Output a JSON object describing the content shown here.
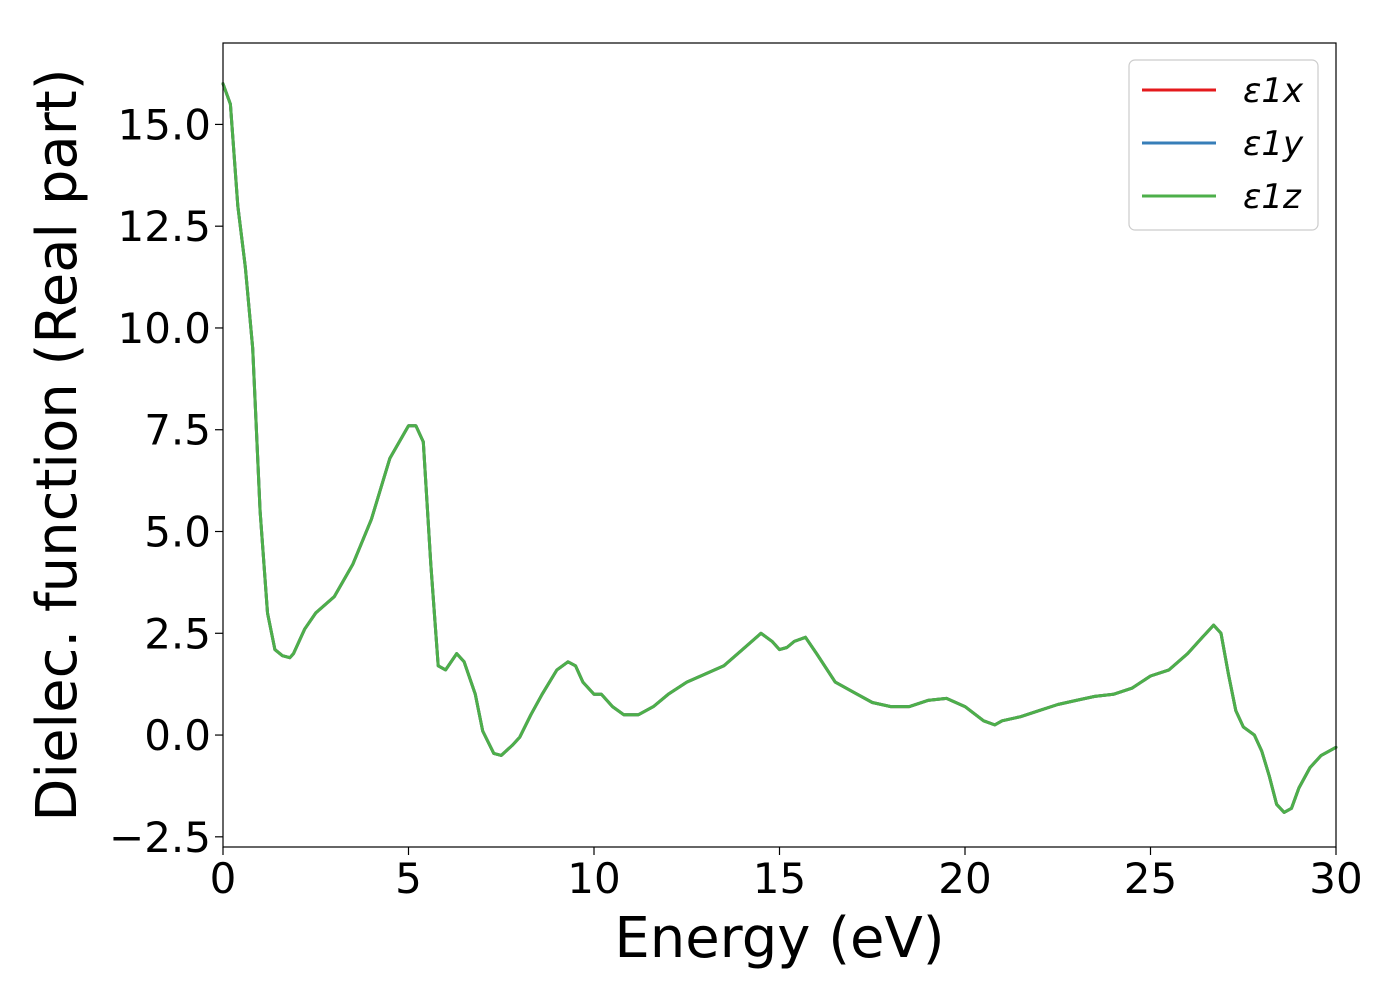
{
  "chart_data": {
    "type": "line",
    "title": "",
    "xlabel": "Energy (eV)",
    "ylabel": "Dielec. function (Real part)",
    "xlim": [
      0,
      30
    ],
    "ylim": [
      -2.75,
      17.0
    ],
    "xticks": [
      0,
      5,
      10,
      15,
      20,
      25,
      30
    ],
    "xtick_labels": [
      "0",
      "5",
      "10",
      "15",
      "20",
      "25",
      "30"
    ],
    "yticks": [
      -2.5,
      0.0,
      2.5,
      5.0,
      7.5,
      10.0,
      12.5,
      15.0
    ],
    "ytick_labels": [
      "−2.5",
      "0.0",
      "2.5",
      "5.0",
      "7.5",
      "10.0",
      "12.5",
      "15.0"
    ],
    "grid": false,
    "legend_position": "top-right",
    "series": [
      {
        "name": "ε1x",
        "color": "#e41a1c",
        "x": [
          0,
          0.2,
          0.4,
          0.6,
          0.8,
          1.0,
          1.2,
          1.4,
          1.6,
          1.8,
          1.9,
          2.0,
          2.2,
          2.5,
          3.0,
          3.5,
          4.0,
          4.5,
          5.0,
          5.2,
          5.4,
          5.6,
          5.8,
          6.0,
          6.3,
          6.5,
          6.8,
          7.0,
          7.3,
          7.5,
          7.8,
          8.0,
          8.3,
          8.6,
          9.0,
          9.3,
          9.5,
          9.7,
          10.0,
          10.2,
          10.5,
          10.8,
          11.2,
          11.6,
          12.0,
          12.5,
          13.0,
          13.5,
          14.0,
          14.5,
          14.8,
          15.0,
          15.2,
          15.4,
          15.7,
          16.0,
          16.5,
          17.0,
          17.5,
          18.0,
          18.5,
          19.0,
          19.5,
          20.0,
          20.5,
          20.8,
          21.0,
          21.5,
          22.0,
          22.5,
          23.0,
          23.5,
          24.0,
          24.5,
          25.0,
          25.5,
          26.0,
          26.4,
          26.7,
          26.9,
          27.1,
          27.3,
          27.5,
          27.8,
          28.0,
          28.2,
          28.4,
          28.6,
          28.8,
          29.0,
          29.3,
          29.6,
          30.0
        ],
        "y": [
          16.0,
          15.5,
          13.0,
          11.5,
          9.5,
          5.5,
          3.0,
          2.1,
          1.95,
          1.9,
          2.0,
          2.2,
          2.6,
          3.0,
          3.4,
          4.2,
          5.3,
          6.8,
          7.6,
          7.6,
          7.2,
          4.2,
          1.7,
          1.6,
          2.0,
          1.8,
          1.0,
          0.1,
          -0.45,
          -0.5,
          -0.25,
          -0.05,
          0.5,
          1.0,
          1.6,
          1.8,
          1.7,
          1.3,
          1.0,
          1.0,
          0.7,
          0.5,
          0.5,
          0.7,
          1.0,
          1.3,
          1.5,
          1.7,
          2.1,
          2.5,
          2.3,
          2.1,
          2.15,
          2.3,
          2.4,
          2.0,
          1.3,
          1.05,
          0.8,
          0.7,
          0.7,
          0.85,
          0.9,
          0.7,
          0.35,
          0.25,
          0.35,
          0.45,
          0.6,
          0.75,
          0.85,
          0.95,
          1.0,
          1.15,
          1.45,
          1.6,
          2.0,
          2.4,
          2.7,
          2.5,
          1.5,
          0.6,
          0.2,
          0.0,
          -0.4,
          -1.0,
          -1.7,
          -1.9,
          -1.8,
          -1.3,
          -0.8,
          -0.5,
          -0.3
        ]
      },
      {
        "name": "ε1y",
        "color": "#377eb8",
        "x": [
          0,
          0.2,
          0.4,
          0.6,
          0.8,
          1.0,
          1.2,
          1.4,
          1.6,
          1.8,
          1.9,
          2.0,
          2.2,
          2.5,
          3.0,
          3.5,
          4.0,
          4.5,
          5.0,
          5.2,
          5.4,
          5.6,
          5.8,
          6.0,
          6.3,
          6.5,
          6.8,
          7.0,
          7.3,
          7.5,
          7.8,
          8.0,
          8.3,
          8.6,
          9.0,
          9.3,
          9.5,
          9.7,
          10.0,
          10.2,
          10.5,
          10.8,
          11.2,
          11.6,
          12.0,
          12.5,
          13.0,
          13.5,
          14.0,
          14.5,
          14.8,
          15.0,
          15.2,
          15.4,
          15.7,
          16.0,
          16.5,
          17.0,
          17.5,
          18.0,
          18.5,
          19.0,
          19.5,
          20.0,
          20.5,
          20.8,
          21.0,
          21.5,
          22.0,
          22.5,
          23.0,
          23.5,
          24.0,
          24.5,
          25.0,
          25.5,
          26.0,
          26.4,
          26.7,
          26.9,
          27.1,
          27.3,
          27.5,
          27.8,
          28.0,
          28.2,
          28.4,
          28.6,
          28.8,
          29.0,
          29.3,
          29.6,
          30.0
        ],
        "y": [
          16.0,
          15.5,
          13.0,
          11.5,
          9.5,
          5.5,
          3.0,
          2.1,
          1.95,
          1.9,
          2.0,
          2.2,
          2.6,
          3.0,
          3.4,
          4.2,
          5.3,
          6.8,
          7.6,
          7.6,
          7.2,
          4.2,
          1.7,
          1.6,
          2.0,
          1.8,
          1.0,
          0.1,
          -0.45,
          -0.5,
          -0.25,
          -0.05,
          0.5,
          1.0,
          1.6,
          1.8,
          1.7,
          1.3,
          1.0,
          1.0,
          0.7,
          0.5,
          0.5,
          0.7,
          1.0,
          1.3,
          1.5,
          1.7,
          2.1,
          2.5,
          2.3,
          2.1,
          2.15,
          2.3,
          2.4,
          2.0,
          1.3,
          1.05,
          0.8,
          0.7,
          0.7,
          0.85,
          0.9,
          0.7,
          0.35,
          0.25,
          0.35,
          0.45,
          0.6,
          0.75,
          0.85,
          0.95,
          1.0,
          1.15,
          1.45,
          1.6,
          2.0,
          2.4,
          2.7,
          2.5,
          1.5,
          0.6,
          0.2,
          0.0,
          -0.4,
          -1.0,
          -1.7,
          -1.9,
          -1.8,
          -1.3,
          -0.8,
          -0.5,
          -0.3
        ]
      },
      {
        "name": "ε1z",
        "color": "#4daf4a",
        "x": [
          0,
          0.2,
          0.4,
          0.6,
          0.8,
          1.0,
          1.2,
          1.4,
          1.6,
          1.8,
          1.9,
          2.0,
          2.2,
          2.5,
          3.0,
          3.5,
          4.0,
          4.5,
          5.0,
          5.2,
          5.4,
          5.6,
          5.8,
          6.0,
          6.3,
          6.5,
          6.8,
          7.0,
          7.3,
          7.5,
          7.8,
          8.0,
          8.3,
          8.6,
          9.0,
          9.3,
          9.5,
          9.7,
          10.0,
          10.2,
          10.5,
          10.8,
          11.2,
          11.6,
          12.0,
          12.5,
          13.0,
          13.5,
          14.0,
          14.5,
          14.8,
          15.0,
          15.2,
          15.4,
          15.7,
          16.0,
          16.5,
          17.0,
          17.5,
          18.0,
          18.5,
          19.0,
          19.5,
          20.0,
          20.5,
          20.8,
          21.0,
          21.5,
          22.0,
          22.5,
          23.0,
          23.5,
          24.0,
          24.5,
          25.0,
          25.5,
          26.0,
          26.4,
          26.7,
          26.9,
          27.1,
          27.3,
          27.5,
          27.8,
          28.0,
          28.2,
          28.4,
          28.6,
          28.8,
          29.0,
          29.3,
          29.6,
          30.0
        ],
        "y": [
          16.0,
          15.5,
          13.0,
          11.5,
          9.5,
          5.5,
          3.0,
          2.1,
          1.95,
          1.9,
          2.0,
          2.2,
          2.6,
          3.0,
          3.4,
          4.2,
          5.3,
          6.8,
          7.6,
          7.6,
          7.2,
          4.2,
          1.7,
          1.6,
          2.0,
          1.8,
          1.0,
          0.1,
          -0.45,
          -0.5,
          -0.25,
          -0.05,
          0.5,
          1.0,
          1.6,
          1.8,
          1.7,
          1.3,
          1.0,
          1.0,
          0.7,
          0.5,
          0.5,
          0.7,
          1.0,
          1.3,
          1.5,
          1.7,
          2.1,
          2.5,
          2.3,
          2.1,
          2.15,
          2.3,
          2.4,
          2.0,
          1.3,
          1.05,
          0.8,
          0.7,
          0.7,
          0.85,
          0.9,
          0.7,
          0.35,
          0.25,
          0.35,
          0.45,
          0.6,
          0.75,
          0.85,
          0.95,
          1.0,
          1.15,
          1.45,
          1.6,
          2.0,
          2.4,
          2.7,
          2.5,
          1.5,
          0.6,
          0.2,
          0.0,
          -0.4,
          -1.0,
          -1.7,
          -1.9,
          -1.8,
          -1.3,
          -0.8,
          -0.5,
          -0.3
        ]
      }
    ]
  }
}
